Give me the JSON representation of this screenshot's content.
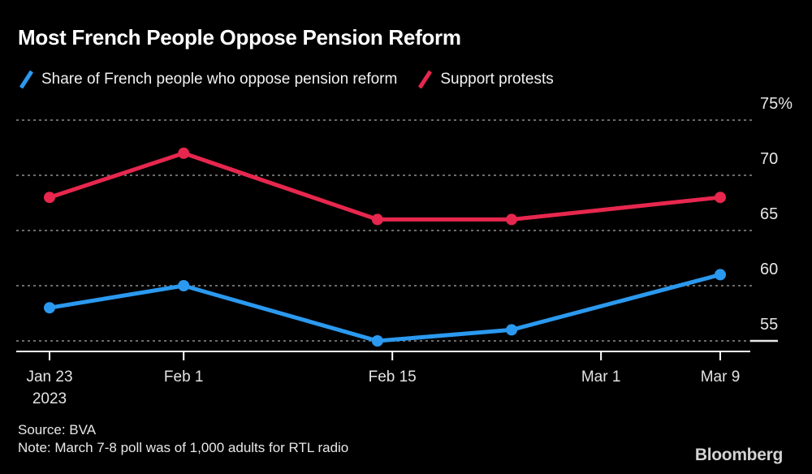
{
  "header": {
    "title": "Most French People Oppose Pension Reform"
  },
  "legend": {
    "items": [
      {
        "label": "Share of French people who oppose pension reform",
        "color": "#2b99ef",
        "icon": "blue-slash-icon"
      },
      {
        "label": "Support protests",
        "color": "#e7274e",
        "icon": "red-slash-icon"
      }
    ]
  },
  "chart_data": {
    "type": "line",
    "title": "Most French People Oppose Pension Reform",
    "x_dates": [
      "Jan 23",
      "Feb 1",
      "Feb 14",
      "Feb 23",
      "Mar 9"
    ],
    "x_days_from_start": [
      0,
      9,
      22,
      31,
      45
    ],
    "series": [
      {
        "name": "Share of French people who oppose pension reform",
        "color": "#2b99ef",
        "values": [
          58,
          60,
          55,
          56,
          61
        ]
      },
      {
        "name": "Support protests",
        "color": "#e7274e",
        "values": [
          68,
          72,
          66,
          66,
          68
        ]
      }
    ],
    "y_ticks": [
      {
        "label": "75%",
        "value": 75
      },
      {
        "label": "70",
        "value": 70
      },
      {
        "label": "65",
        "value": 65
      },
      {
        "label": "60",
        "value": 60
      },
      {
        "label": "55",
        "value": 55
      }
    ],
    "x_ticks": [
      {
        "label": "Jan 23",
        "sublabel": "2023",
        "day": 0
      },
      {
        "label": "Feb 1",
        "sublabel": "",
        "day": 9
      },
      {
        "label": "Feb 15",
        "sublabel": "",
        "day": 23
      },
      {
        "label": "Mar 1",
        "sublabel": "",
        "day": 37
      },
      {
        "label": "Mar 9",
        "sublabel": "",
        "day": 45
      }
    ],
    "ylim": [
      54,
      75
    ],
    "unit": "%",
    "grid": "dotted-horizontal",
    "legend_position": "top-left",
    "marker": "circle",
    "colors": {
      "background": "#000000",
      "axis": "#ffffff",
      "gridline": "#6b6b6b",
      "text": "#e6e6e6"
    }
  },
  "footer": {
    "source": "Source: BVA",
    "note": "Note: March 7-8 poll was of 1,000 adults for RTL radio",
    "brand": "Bloomberg"
  }
}
